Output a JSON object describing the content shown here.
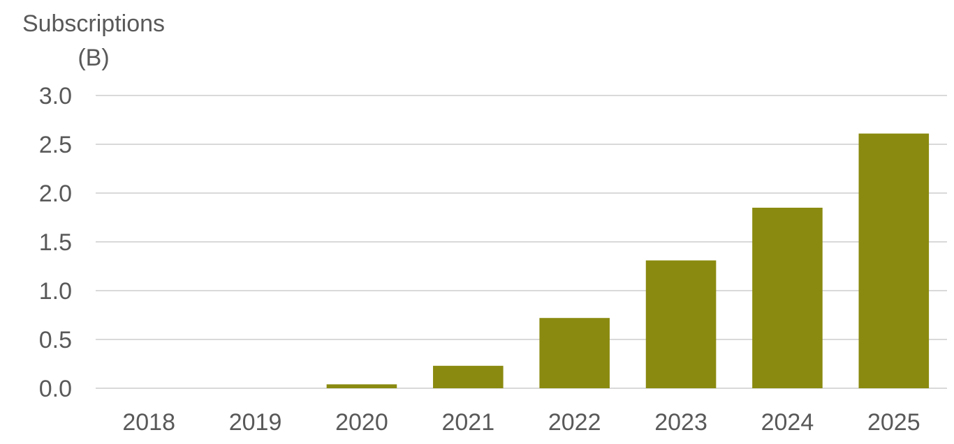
{
  "chart_data": {
    "type": "bar",
    "title": "",
    "xlabel": "",
    "ylabel_lines": [
      "Subscriptions",
      "(B)"
    ],
    "categories": [
      "2018",
      "2019",
      "2020",
      "2021",
      "2022",
      "2023",
      "2024",
      "2025"
    ],
    "values": [
      0,
      0,
      0.04,
      0.23,
      0.72,
      1.31,
      1.85,
      2.61
    ],
    "ylim": [
      0,
      3.0
    ],
    "yticks": [
      "0.0",
      "0.5",
      "1.0",
      "1.5",
      "2.0",
      "2.5",
      "3.0"
    ],
    "grid": true,
    "legend": "none",
    "colors": {
      "bar": "#8A8A10",
      "grid": "#D9D9D9",
      "text": "#595959"
    }
  }
}
